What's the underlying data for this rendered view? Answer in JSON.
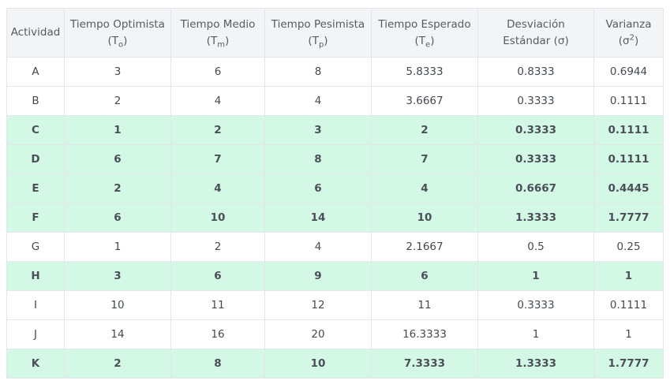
{
  "headers": [
    {
      "line1": "Actividad",
      "line2": "",
      "sym": "",
      "script": "",
      "close": ""
    },
    {
      "line1": "Tiempo Optimista",
      "line2": "",
      "sym": "(T",
      "script": "o",
      "close": ")"
    },
    {
      "line1": "Tiempo Medio",
      "line2": "",
      "sym": "(T",
      "script": "m",
      "close": ")"
    },
    {
      "line1": "Tiempo Pesimista",
      "line2": "",
      "sym": "(T",
      "script": "p",
      "close": ")"
    },
    {
      "line1": "Tiempo Esperado",
      "line2": "",
      "sym": "(T",
      "script": "e",
      "close": ")"
    },
    {
      "line1": "Desviación",
      "line2": "Estándar (σ)",
      "sym": "",
      "script": "",
      "close": ""
    },
    {
      "line1": "Varianza",
      "line2": "",
      "sym": "(σ",
      "script": "2",
      "close": ")"
    }
  ],
  "rows": [
    {
      "critical": false,
      "cells": [
        "A",
        "3",
        "6",
        "8",
        "5.8333",
        "0.8333",
        "0.6944"
      ]
    },
    {
      "critical": false,
      "cells": [
        "B",
        "2",
        "4",
        "4",
        "3.6667",
        "0.3333",
        "0.1111"
      ]
    },
    {
      "critical": true,
      "cells": [
        "C",
        "1",
        "2",
        "3",
        "2",
        "0.3333",
        "0.1111"
      ]
    },
    {
      "critical": true,
      "cells": [
        "D",
        "6",
        "7",
        "8",
        "7",
        "0.3333",
        "0.1111"
      ]
    },
    {
      "critical": true,
      "cells": [
        "E",
        "2",
        "4",
        "6",
        "4",
        "0.6667",
        "0.4445"
      ]
    },
    {
      "critical": true,
      "cells": [
        "F",
        "6",
        "10",
        "14",
        "10",
        "1.3333",
        "1.7777"
      ]
    },
    {
      "critical": false,
      "cells": [
        "G",
        "1",
        "2",
        "4",
        "2.1667",
        "0.5",
        "0.25"
      ]
    },
    {
      "critical": true,
      "cells": [
        "H",
        "3",
        "6",
        "9",
        "6",
        "1",
        "1"
      ]
    },
    {
      "critical": false,
      "cells": [
        "I",
        "10",
        "11",
        "12",
        "11",
        "0.3333",
        "0.1111"
      ]
    },
    {
      "critical": false,
      "cells": [
        "J",
        "14",
        "16",
        "20",
        "16.3333",
        "1",
        "1"
      ]
    },
    {
      "critical": true,
      "cells": [
        "K",
        "2",
        "8",
        "10",
        "7.3333",
        "1.3333",
        "1.7777"
      ]
    }
  ],
  "colors": {
    "critical_row": "#d4f8e6",
    "header_bg": "#f3f4f6",
    "border": "#e3e6ea"
  }
}
